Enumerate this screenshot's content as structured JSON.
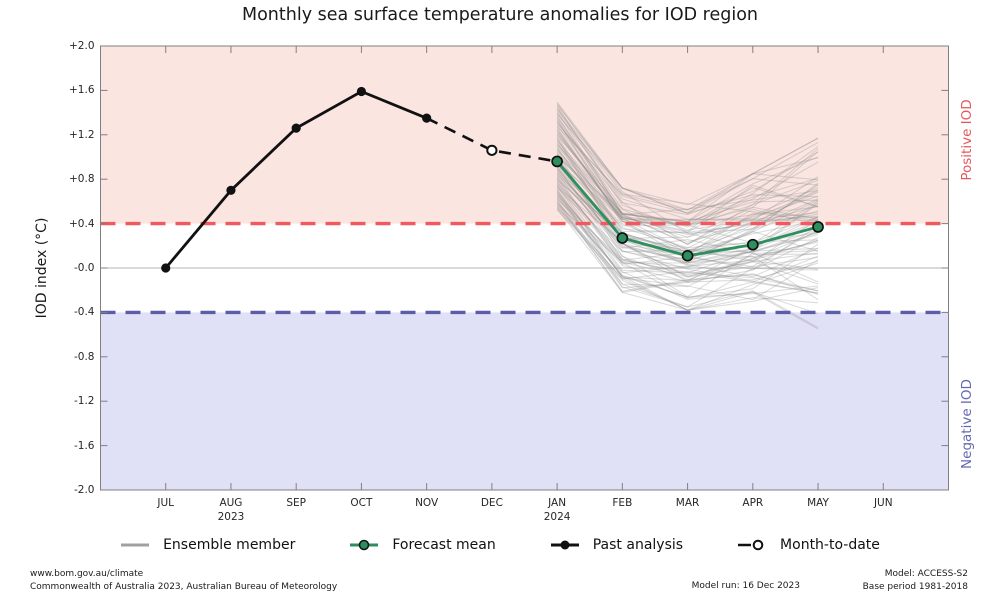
{
  "title": "Monthly sea surface temperature anomalies for IOD region",
  "y_axis": {
    "label": "IOD index (°C)",
    "tick_labels": [
      "+2.0",
      "+1.6",
      "+1.2",
      "+0.8",
      "+0.4",
      "-0.0",
      "-0.4",
      "-0.8",
      "-1.2",
      "-1.6",
      "-2.0"
    ],
    "tick_values": [
      2.0,
      1.6,
      1.2,
      0.8,
      0.4,
      0.0,
      -0.4,
      -0.8,
      -1.2,
      -1.6,
      -2.0
    ],
    "min": -2.0,
    "max": 2.0
  },
  "x_axis": {
    "months": [
      "JUL",
      "AUG",
      "SEP",
      "OCT",
      "NOV",
      "DEC",
      "JAN",
      "FEB",
      "MAR",
      "APR",
      "MAY",
      "JUN"
    ],
    "years": [
      {
        "label": "2023",
        "month": "AUG"
      },
      {
        "label": "2024",
        "month": "JAN"
      }
    ]
  },
  "regions": {
    "positive": {
      "label": "Positive IOD",
      "threshold": 0.4
    },
    "negative": {
      "label": "Negative IOD",
      "threshold": -0.4
    }
  },
  "chart_data": {
    "type": "line",
    "title": "Monthly sea surface temperature anomalies for IOD region",
    "xlabel": "",
    "ylabel": "IOD index (°C)",
    "ylim": [
      -2.0,
      2.0
    ],
    "x_categories": [
      "JUL",
      "AUG",
      "SEP",
      "OCT",
      "NOV",
      "DEC",
      "JAN",
      "FEB",
      "MAR",
      "APR",
      "MAY",
      "JUN"
    ],
    "grid": false,
    "legend_position": "bottom",
    "thresholds": {
      "positive_iod": 0.4,
      "negative_iod": -0.4
    },
    "series": [
      {
        "name": "Past analysis",
        "months": [
          "JUL",
          "AUG",
          "SEP",
          "OCT",
          "NOV"
        ],
        "values": [
          0.0,
          0.7,
          1.26,
          1.59,
          1.35
        ]
      },
      {
        "name": "Month-to-date",
        "months": [
          "NOV",
          "DEC",
          "JAN"
        ],
        "values": [
          1.35,
          1.06,
          0.96
        ],
        "open_marker_month": "DEC"
      },
      {
        "name": "Forecast mean",
        "months": [
          "JAN",
          "FEB",
          "MAR",
          "APR",
          "MAY"
        ],
        "values": [
          0.96,
          0.27,
          0.11,
          0.21,
          0.37
        ]
      },
      {
        "name": "Ensemble members",
        "months": [
          "JAN",
          "FEB",
          "MAR",
          "APR",
          "MAY"
        ],
        "count": 90,
        "seed": 7,
        "envelope_min": [
          0.52,
          -0.22,
          -0.38,
          -0.3,
          -0.55
        ],
        "envelope_max": [
          1.5,
          0.72,
          0.58,
          0.85,
          1.17
        ]
      }
    ]
  },
  "legend": [
    {
      "label": "Ensemble member",
      "icon": "ensemble-line-icon"
    },
    {
      "label": "Forecast mean",
      "icon": "forecast-mean-icon"
    },
    {
      "label": "Past analysis",
      "icon": "past-analysis-icon"
    },
    {
      "label": "Month-to-date",
      "icon": "month-to-date-icon"
    }
  ],
  "footer": {
    "url": "www.bom.gov.au/climate",
    "copyright": "Commonwealth of Australia 2023, Australian Bureau of Meteorology",
    "model_run": "Model run: 16 Dec 2023",
    "model": "Model: ACCESS-S2",
    "base_period": "Base period 1981-2018"
  },
  "colors": {
    "positive_fill": "#fae5e1",
    "negative_fill": "#e0e0f6",
    "positive_line": "#f2595f",
    "negative_line": "#5c5ca8",
    "positive_text": "#e4585b",
    "negative_text": "#6668b0",
    "forecast_green": "#2e8f5e",
    "ensemble_gray": "#8c8c8c",
    "analysis_black": "#111111",
    "frame_gray": "#808080",
    "zero_line": "#b5b5b5"
  }
}
